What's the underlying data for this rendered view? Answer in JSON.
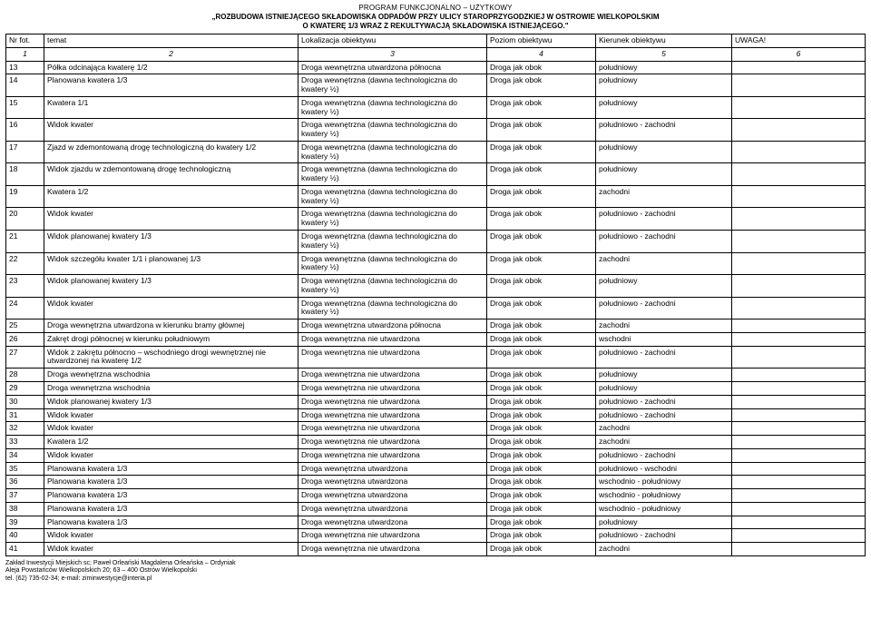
{
  "header": {
    "line1": "PROGRAM FUNKCJONALNO – UŻYTKOWY",
    "line2": "„ROZBUDOWA ISTNIEJĄCEGO SKŁADOWISKA ODPADÓW PRZY ULICY STAROPRZYGODZKIEJ W OSTROWIE WIELKOPOLSKIM",
    "line3": "O KWATERĘ 1/3 WRAZ Z REKULTYWACJĄ SKŁADOWISKA ISTNIEJĄCEGO.\""
  },
  "columns": {
    "c1": "Nr fot.",
    "c2": "temat",
    "c3": "Lokalizacja obiektywu",
    "c4": "Poziom obiektywu",
    "c5": "Kierunek obiektywu",
    "c6": "UWAGA!"
  },
  "numbers": {
    "n1": "1",
    "n2": "2",
    "n3": "3",
    "n4": "4",
    "n5": "5",
    "n6": "6"
  },
  "loc": {
    "dwu_pn": "Droga wewnętrzna utwardzona północna",
    "dwd": "Droga wewnętrzna (dawna technologiczna do kwatery ½)",
    "dwnu": "Droga wewnętrzna nie utwardzona",
    "dwu": "Droga wewnętrzna utwardzona"
  },
  "lvl": "Droga jak obok",
  "dir": {
    "pd": "południowy",
    "pdz": "południowo - zachodni",
    "z": "zachodni",
    "w": "wschodni",
    "pdw": "południowo - wschodni",
    "wpd": "wschodnio - południowy"
  },
  "rows": [
    {
      "nr": "13",
      "t": "Półka odcinająca kwaterę 1/2",
      "l": "dwu_pn",
      "d": "pd"
    },
    {
      "nr": "14",
      "t": "Planowana kwatera 1/3",
      "l": "dwd",
      "d": "pd"
    },
    {
      "nr": "15",
      "t": "Kwatera 1/1",
      "l": "dwd",
      "d": "pd"
    },
    {
      "nr": "16",
      "t": "Widok kwater",
      "l": "dwd",
      "d": "pdz"
    },
    {
      "nr": "17",
      "t": "Zjazd w zdemontowaną drogę technologiczną do kwatery 1/2",
      "l": "dwd",
      "d": "pd"
    },
    {
      "nr": "18",
      "t": "Widok zjazdu w zdemontowaną drogę technologiczną",
      "l": "dwd",
      "d": "pd"
    },
    {
      "nr": "19",
      "t": "Kwatera 1/2",
      "l": "dwd",
      "d": "z"
    },
    {
      "nr": "20",
      "t": "Widok kwater",
      "l": "dwd",
      "d": "pdz"
    },
    {
      "nr": "21",
      "t": "Widok planowanej kwatery 1/3",
      "l": "dwd",
      "d": "pdz"
    },
    {
      "nr": "22",
      "t": "Widok szczegółu kwater 1/1 i planowanej 1/3",
      "l": "dwd",
      "d": "z"
    },
    {
      "nr": "23",
      "t": "Widok planowanej kwatery 1/3",
      "l": "dwd",
      "d": "pd"
    },
    {
      "nr": "24",
      "t": "Widok kwater",
      "l": "dwd",
      "d": "pdz"
    },
    {
      "nr": "25",
      "t": "Droga wewnętrzna utwardzona w kierunku bramy głównej",
      "l": "dwu_pn",
      "d": "z"
    },
    {
      "nr": "26",
      "t": "Zakręt drogi północnej w kierunku południowym",
      "l": "dwnu",
      "d": "w"
    },
    {
      "nr": "27",
      "t": "Widok z zakrętu północno – wschodniego drogi wewnętrznej nie utwardzonej na kwaterę 1/2",
      "l": "dwnu",
      "d": "pdz"
    },
    {
      "nr": "28",
      "t": "Droga wewnętrzna wschodnia",
      "l": "dwnu",
      "d": "pd"
    },
    {
      "nr": "29",
      "t": "Droga wewnętrzna wschodnia",
      "l": "dwnu",
      "d": "pd"
    },
    {
      "nr": "30",
      "t": "Widok planowanej kwatery 1/3",
      "l": "dwnu",
      "d": "pdz"
    },
    {
      "nr": "31",
      "t": "Widok kwater",
      "l": "dwnu",
      "d": "pdz"
    },
    {
      "nr": "32",
      "t": "Widok kwater",
      "l": "dwnu",
      "d": "z"
    },
    {
      "nr": "33",
      "t": "Kwatera 1/2",
      "l": "dwnu",
      "d": "z"
    },
    {
      "nr": "34",
      "t": "Widok kwater",
      "l": "dwnu",
      "d": "pdz"
    },
    {
      "nr": "35",
      "t": "Planowana kwatera 1/3",
      "l": "dwu",
      "d": "pdw"
    },
    {
      "nr": "36",
      "t": "Planowana kwatera 1/3",
      "l": "dwu",
      "d": "wpd"
    },
    {
      "nr": "37",
      "t": "Planowana kwatera 1/3",
      "l": "dwu",
      "d": "wpd"
    },
    {
      "nr": "38",
      "t": "Planowana kwatera 1/3",
      "l": "dwu",
      "d": "wpd"
    },
    {
      "nr": "39",
      "t": "Planowana kwatera 1/3",
      "l": "dwu",
      "d": "pd"
    },
    {
      "nr": "40",
      "t": "Widok kwater",
      "l": "dwnu",
      "d": "pdz"
    },
    {
      "nr": "41",
      "t": "Widok kwater",
      "l": "dwnu",
      "d": "z"
    }
  ],
  "footer": {
    "l1": "Zakład Inwestycji Miejskich sc; Paweł Orleański Magdalena Orleańska – Ordyniak",
    "l2": "Aleja Powstańców Wielkopolskich 20; 63 – 400 Ostrów Wielkopolski",
    "l3": "tel. (62) 735-02-34; e-mail: ziminwestycje@interia.pl"
  }
}
